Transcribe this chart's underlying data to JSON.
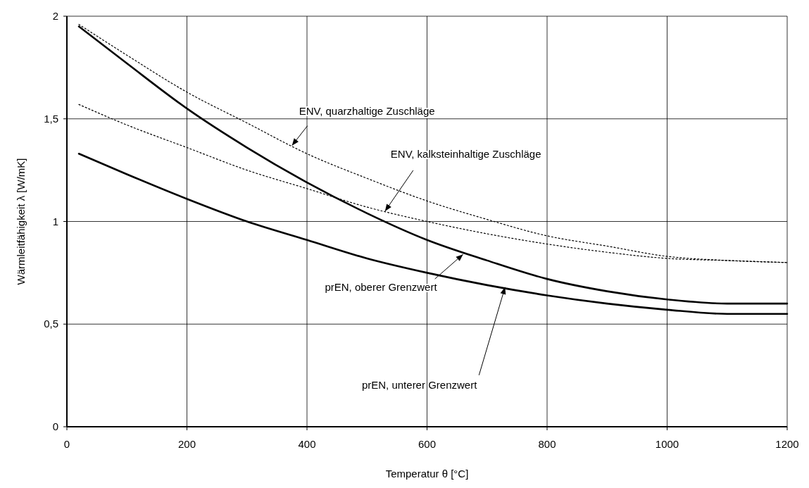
{
  "chart_data": {
    "type": "line",
    "xlabel": "Temperatur θ [°C]",
    "ylabel": "Wärmleitfähigkeit λ [W/mK]",
    "x": [
      20,
      100,
      200,
      300,
      400,
      500,
      600,
      700,
      800,
      900,
      1000,
      1100,
      1200
    ],
    "series": [
      {
        "color": "#000000",
        "line_style": "dotted",
        "values": [
          1.96,
          1.81,
          1.63,
          1.48,
          1.33,
          1.21,
          1.1,
          1.01,
          0.93,
          0.88,
          0.83,
          0.81,
          0.8
        ]
      },
      {
        "color": "#000000",
        "line_style": "dotted",
        "values": [
          1.57,
          1.47,
          1.36,
          1.25,
          1.16,
          1.07,
          1.0,
          0.94,
          0.89,
          0.85,
          0.82,
          0.81,
          0.8
        ]
      },
      {
        "color": "#000000",
        "line_style": "solid",
        "values": [
          1.95,
          1.77,
          1.55,
          1.36,
          1.19,
          1.04,
          0.91,
          0.81,
          0.72,
          0.66,
          0.62,
          0.6,
          0.6
        ]
      },
      {
        "color": "#000000",
        "line_style": "solid",
        "values": [
          1.33,
          1.23,
          1.11,
          1.0,
          0.91,
          0.82,
          0.75,
          0.69,
          0.64,
          0.6,
          0.57,
          0.55,
          0.55
        ]
      }
    ],
    "annotations": [
      {
        "text": "ENV, quarzhaltige Zuschläge",
        "x": 375,
        "y": 1.37
      },
      {
        "text": "ENV, kalksteinhaltige Zuschläge",
        "x": 530,
        "y": 1.05
      },
      {
        "text": "prEN, oberer Grenzwert",
        "x": 660,
        "y": 0.84
      },
      {
        "text": "prEN, unterer Grenzwert",
        "x": 730,
        "y": 0.68
      }
    ],
    "xlim": [
      0,
      1200
    ],
    "xticks": [
      0,
      200,
      400,
      600,
      800,
      1000,
      1200
    ],
    "ylim": [
      0,
      2
    ],
    "yticks": [
      0,
      {
        "value": 0.5,
        "label": "0,5"
      },
      1,
      {
        "value": 1.5,
        "label": "1,5"
      },
      2
    ],
    "grid": true,
    "marker": "none"
  }
}
